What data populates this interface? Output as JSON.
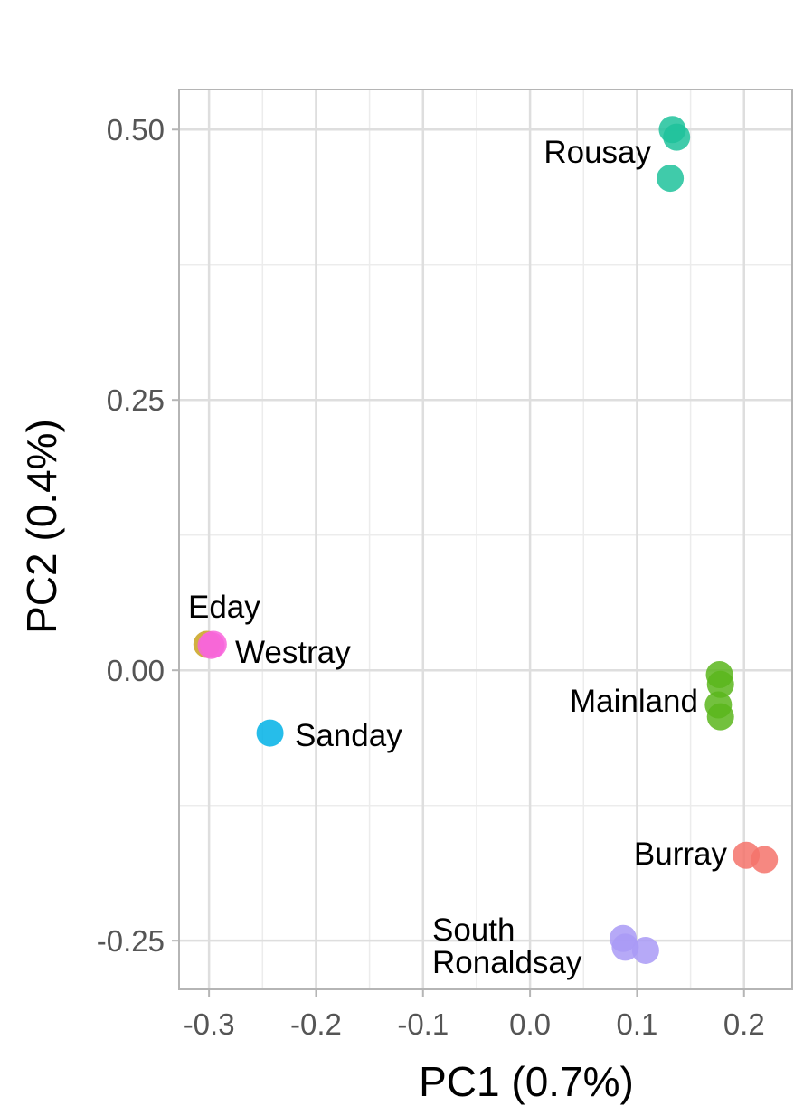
{
  "chart_data": {
    "type": "scatter",
    "xlabel": "PC1 (0.7%)",
    "ylabel": "PC2 (0.4%)",
    "xlim": [
      -0.328,
      0.245
    ],
    "ylim": [
      -0.295,
      0.537
    ],
    "x_ticks": [
      -0.3,
      -0.2,
      -0.1,
      0.0,
      0.1,
      0.2
    ],
    "x_tick_labels": [
      "-0.3",
      "-0.2",
      "-0.1",
      "0.0",
      "0.1",
      "0.2"
    ],
    "y_ticks": [
      0.5,
      0.25,
      0.0,
      -0.25
    ],
    "y_tick_labels": [
      "0.50",
      "0.25",
      "0.00",
      "-0.25"
    ],
    "grid": true,
    "legend": "none",
    "series": [
      {
        "name": "Rousay",
        "color": "#1FC29B",
        "points": [
          [
            0.133,
            0.5
          ],
          [
            0.137,
            0.493
          ],
          [
            0.131,
            0.455
          ]
        ]
      },
      {
        "name": "Eday",
        "color": "#C9A21E",
        "points": [
          [
            -0.302,
            0.024
          ]
        ]
      },
      {
        "name": "Westray",
        "color": "#F865DB",
        "points": [
          [
            -0.298,
            0.023
          ],
          [
            -0.296,
            0.024
          ]
        ]
      },
      {
        "name": "Sanday",
        "color": "#00B2E6",
        "points": [
          [
            -0.243,
            -0.058
          ]
        ]
      },
      {
        "name": "Mainland",
        "color": "#5BB61C",
        "points": [
          [
            0.177,
            -0.004
          ],
          [
            0.178,
            -0.013
          ],
          [
            0.176,
            -0.032
          ],
          [
            0.178,
            -0.043
          ]
        ]
      },
      {
        "name": "Burray",
        "color": "#F4736B",
        "points": [
          [
            0.202,
            -0.171
          ],
          [
            0.219,
            -0.175
          ]
        ]
      },
      {
        "name": "South Ronaldsay",
        "color": "#A99AF6",
        "points": [
          [
            0.087,
            -0.248
          ],
          [
            0.089,
            -0.256
          ],
          [
            0.108,
            -0.259
          ]
        ]
      }
    ]
  }
}
